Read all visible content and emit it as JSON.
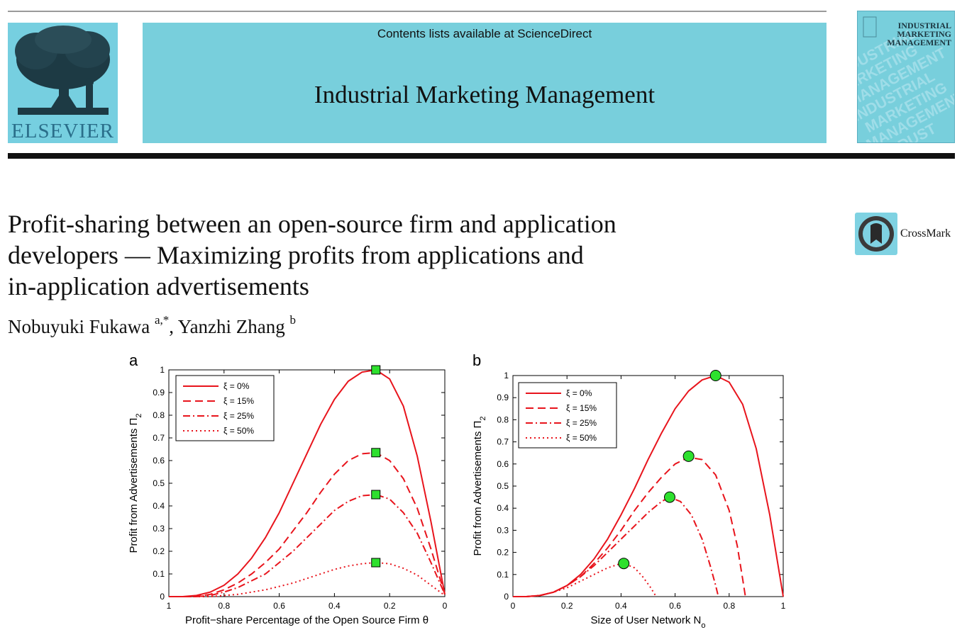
{
  "header": {
    "publisher_wordmark": "ELSEVIER",
    "contents_line": "Contents lists available at ScienceDirect",
    "journal_name": "Industrial Marketing Management",
    "cover_title_line1": "INDUSTRIAL",
    "cover_title_line2": "MARKETING",
    "cover_title_line3": "MANAGEMENT",
    "cover_watermark": [
      "INDUSTRIAL",
      "MARKETING",
      "MANAGEMENT",
      "INDUSTRIAL",
      "MARKETING",
      "MANAGEMENT",
      "INDUST"
    ]
  },
  "article": {
    "title_line1": "Profit-sharing between an open-source firm and application",
    "title_line2": "developers — Maximizing profits from applications and",
    "title_line3": "in-application advertisements",
    "crossmark_label": "CrossMark",
    "author1": "Nobuyuki Fukawa",
    "author1_aff": "a,*",
    "sep": ", ",
    "author2": "Yanzhi Zhang",
    "author2_aff": "b"
  },
  "colors": {
    "banner": "#78cfdc",
    "curve": "#e8141c",
    "marker": "#2ee02e"
  },
  "chart_data": [
    {
      "panel_label": "a",
      "type": "line",
      "xlabel": "Profit−share Percentage of the Open Source Firm  θ",
      "ylabel": "Profit from Advertisements  Π",
      "ylabel_sub": "2",
      "xlim": [
        1,
        0
      ],
      "x_reversed": true,
      "ylim": [
        0,
        1
      ],
      "xticks": [
        "1",
        "0.8",
        "0.6",
        "0.4",
        "0.2",
        "0"
      ],
      "yticks": [
        "0",
        "0.1",
        "0.2",
        "0.3",
        "0.4",
        "0.5",
        "0.6",
        "0.7",
        "0.8",
        "0.9",
        "1"
      ],
      "legend_position": "top-left",
      "marker": "square",
      "series": [
        {
          "name": "ξ = 0%",
          "style": "solid",
          "x": [
            1,
            0.95,
            0.9,
            0.85,
            0.8,
            0.75,
            0.7,
            0.65,
            0.6,
            0.55,
            0.5,
            0.45,
            0.4,
            0.35,
            0.3,
            0.25,
            0.2,
            0.15,
            0.1,
            0.05,
            0
          ],
          "y": [
            0,
            0,
            0.005,
            0.02,
            0.05,
            0.1,
            0.17,
            0.26,
            0.37,
            0.5,
            0.63,
            0.76,
            0.87,
            0.95,
            0.99,
            1.0,
            0.96,
            0.84,
            0.62,
            0.33,
            0.01
          ],
          "optimum": [
            0.25,
            1.0
          ]
        },
        {
          "name": "ξ = 15%",
          "style": "dashed",
          "x": [
            1,
            0.95,
            0.9,
            0.85,
            0.8,
            0.75,
            0.7,
            0.65,
            0.6,
            0.55,
            0.5,
            0.45,
            0.4,
            0.35,
            0.3,
            0.25,
            0.2,
            0.15,
            0.1,
            0.05,
            0
          ],
          "y": [
            0,
            0,
            0,
            0.01,
            0.03,
            0.06,
            0.1,
            0.15,
            0.21,
            0.29,
            0.37,
            0.46,
            0.54,
            0.6,
            0.63,
            0.635,
            0.6,
            0.52,
            0.39,
            0.21,
            0.01
          ],
          "optimum": [
            0.25,
            0.635
          ]
        },
        {
          "name": "ξ = 25%",
          "style": "dashdot",
          "x": [
            1,
            0.95,
            0.9,
            0.85,
            0.8,
            0.75,
            0.7,
            0.65,
            0.6,
            0.55,
            0.5,
            0.45,
            0.4,
            0.35,
            0.3,
            0.25,
            0.2,
            0.15,
            0.1,
            0.05,
            0
          ],
          "y": [
            0,
            0,
            0,
            0.005,
            0.02,
            0.04,
            0.07,
            0.1,
            0.15,
            0.2,
            0.26,
            0.32,
            0.38,
            0.42,
            0.445,
            0.45,
            0.43,
            0.37,
            0.28,
            0.15,
            0.01
          ],
          "optimum": [
            0.25,
            0.45
          ]
        },
        {
          "name": "ξ = 50%",
          "style": "dotted",
          "x": [
            1,
            0.95,
            0.9,
            0.85,
            0.8,
            0.75,
            0.7,
            0.65,
            0.6,
            0.55,
            0.5,
            0.45,
            0.4,
            0.35,
            0.3,
            0.25,
            0.2,
            0.15,
            0.1,
            0.05,
            0
          ],
          "y": [
            0,
            0,
            0,
            0,
            0.005,
            0.01,
            0.02,
            0.03,
            0.045,
            0.06,
            0.08,
            0.1,
            0.12,
            0.135,
            0.145,
            0.15,
            0.145,
            0.125,
            0.095,
            0.05,
            0.005
          ],
          "optimum": [
            0.25,
            0.15
          ]
        }
      ]
    },
    {
      "panel_label": "b",
      "type": "line",
      "xlabel": "Size of User Network  N",
      "xlabel_sub": "o",
      "ylabel": "Profit from Advertisements  Π",
      "ylabel_sub": "2",
      "xlim": [
        0,
        1
      ],
      "ylim": [
        0,
        1
      ],
      "xticks": [
        "0",
        "0.2",
        "0.4",
        "0.6",
        "0.8",
        "1"
      ],
      "yticks": [
        "0",
        "0.1",
        "0.2",
        "0.3",
        "0.4",
        "0.5",
        "0.6",
        "0.7",
        "0.8",
        "0.9",
        "1"
      ],
      "legend_position": "top-left",
      "marker": "circle",
      "series": [
        {
          "name": "ξ = 0%",
          "style": "solid",
          "x": [
            0,
            0.05,
            0.1,
            0.15,
            0.2,
            0.25,
            0.3,
            0.35,
            0.4,
            0.45,
            0.5,
            0.55,
            0.6,
            0.65,
            0.7,
            0.75,
            0.8,
            0.85,
            0.9,
            0.95,
            1.0
          ],
          "y": [
            0,
            0,
            0.005,
            0.02,
            0.05,
            0.1,
            0.17,
            0.26,
            0.37,
            0.49,
            0.62,
            0.74,
            0.85,
            0.93,
            0.98,
            1.0,
            0.97,
            0.87,
            0.67,
            0.37,
            0
          ],
          "optimum": [
            0.75,
            1.0
          ]
        },
        {
          "name": "ξ = 15%",
          "style": "dashed",
          "x": [
            0,
            0.05,
            0.1,
            0.15,
            0.2,
            0.25,
            0.3,
            0.35,
            0.4,
            0.45,
            0.5,
            0.55,
            0.6,
            0.65,
            0.7,
            0.75,
            0.8,
            0.83,
            0.85,
            0.86
          ],
          "y": [
            0,
            0,
            0.005,
            0.02,
            0.05,
            0.09,
            0.15,
            0.22,
            0.3,
            0.39,
            0.47,
            0.54,
            0.6,
            0.63,
            0.62,
            0.55,
            0.39,
            0.23,
            0.08,
            0
          ],
          "optimum": [
            0.65,
            0.635
          ]
        },
        {
          "name": "ξ = 25%",
          "style": "dashdot",
          "x": [
            0,
            0.05,
            0.1,
            0.15,
            0.2,
            0.25,
            0.3,
            0.35,
            0.4,
            0.45,
            0.5,
            0.55,
            0.58,
            0.62,
            0.66,
            0.7,
            0.73,
            0.75,
            0.76
          ],
          "y": [
            0,
            0,
            0.005,
            0.02,
            0.05,
            0.09,
            0.14,
            0.2,
            0.26,
            0.32,
            0.38,
            0.43,
            0.45,
            0.43,
            0.37,
            0.26,
            0.14,
            0.05,
            0
          ],
          "optimum": [
            0.58,
            0.45
          ]
        },
        {
          "name": "ξ = 50%",
          "style": "dotted",
          "x": [
            0,
            0.05,
            0.1,
            0.15,
            0.2,
            0.25,
            0.3,
            0.35,
            0.4,
            0.41,
            0.45,
            0.48,
            0.51,
            0.53
          ],
          "y": [
            0,
            0,
            0.005,
            0.02,
            0.04,
            0.07,
            0.1,
            0.13,
            0.15,
            0.15,
            0.13,
            0.09,
            0.04,
            0
          ],
          "optimum": [
            0.41,
            0.15
          ]
        }
      ]
    }
  ]
}
